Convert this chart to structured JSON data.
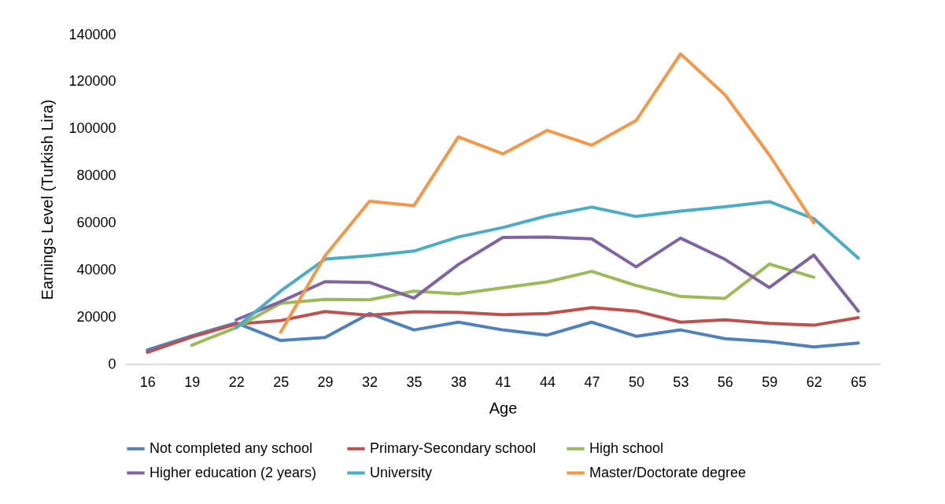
{
  "chart_data": {
    "type": "line",
    "xlabel": "Age",
    "ylabel": "Earnings Level (Turkish Lira)",
    "categories": [
      "16",
      "19",
      "22",
      "25",
      "29",
      "32",
      "35",
      "38",
      "41",
      "44",
      "47",
      "50",
      "53",
      "56",
      "59",
      "62",
      "65"
    ],
    "ylim": [
      0,
      140000
    ],
    "yticks": [
      0,
      20000,
      40000,
      60000,
      80000,
      100000,
      120000,
      140000
    ],
    "grid": false,
    "legend": "bottom",
    "marker": "none",
    "line_style": "solid",
    "series": [
      {
        "name": "Not completed any school",
        "color": "#4f81bd",
        "values": [
          6000,
          12000,
          17500,
          10000,
          11300,
          21500,
          14500,
          17800,
          14500,
          12300,
          17800,
          11800,
          14500,
          10800,
          9500,
          7300,
          8900
        ]
      },
      {
        "name": "Primary-Secondary school",
        "color": "#c0504d",
        "values": [
          5000,
          11500,
          17000,
          18500,
          22300,
          20700,
          22200,
          22000,
          21000,
          21500,
          24000,
          22500,
          17800,
          18800,
          17300,
          16500,
          19700
        ]
      },
      {
        "name": "High school",
        "color": "#9bbb59",
        "values": [
          null,
          8000,
          15500,
          25800,
          27500,
          27300,
          31000,
          29800,
          32400,
          34900,
          39400,
          33400,
          28700,
          27900,
          42500,
          36900,
          null
        ]
      },
      {
        "name": "Higher education (2 years)",
        "color": "#8064a2",
        "values": [
          null,
          null,
          18800,
          26500,
          35000,
          34700,
          28000,
          42300,
          53800,
          54000,
          53200,
          41300,
          53500,
          44500,
          32500,
          46300,
          22500
        ]
      },
      {
        "name": "University",
        "color": "#4bacc6",
        "values": [
          null,
          null,
          15500,
          31000,
          44600,
          46000,
          48000,
          54000,
          58000,
          63000,
          66700,
          62700,
          65000,
          66800,
          69000,
          61800,
          45000
        ]
      },
      {
        "name": "Master/Doctorate degree",
        "color": "#f79646",
        "values": [
          null,
          null,
          null,
          13500,
          46000,
          69200,
          67300,
          96500,
          89300,
          99300,
          93000,
          103500,
          131800,
          114400,
          88800,
          60000,
          null
        ]
      }
    ]
  }
}
